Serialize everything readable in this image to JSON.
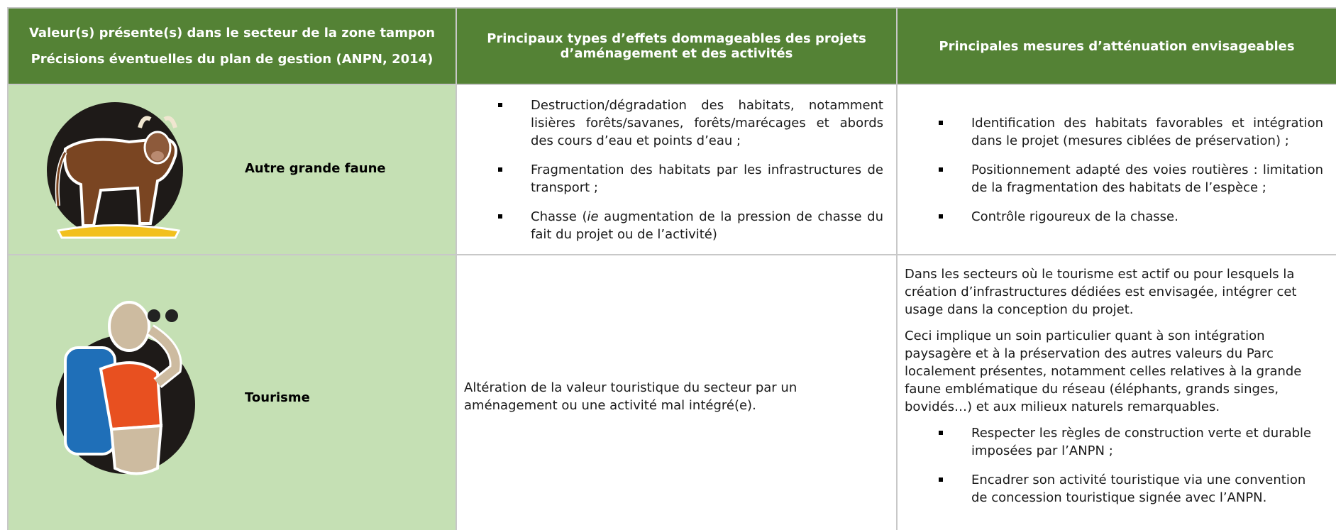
{
  "header": {
    "col1_title": "Valeur(s) présente(s) dans le secteur de la zone tampon",
    "col1_subtitle": "Précisions éventuelles du plan de gestion (ANPN, 2014)",
    "col2": "Principaux types d’effets dommageables des projets d’aménagement et des activités",
    "col3": "Principales mesures d’atténuation envisageables"
  },
  "rows": [
    {
      "value": "Autre grande faune",
      "effects": [
        "Destruction/dégradation des habitats, notamment lisières forêts/savanes, forêts/marécages et abords des cours d’eau et points d’eau ;",
        "Fragmentation des habitats par les infrastructures de transport ;",
        {
          "before": "Chasse (",
          "italic": "ie",
          "after": " augmentation de la pression de chasse du fait du projet ou de l’activité)"
        }
      ],
      "measures": [
        "Identification des habitats favorables et intégration dans le projet (mesures ciblées de préservation) ;",
        "Positionnement adapté des voies routières : limitation de la fragmentation des habitats de l’espèce ;",
        "Contrôle rigoureux de la chasse."
      ]
    },
    {
      "value": "Tourisme",
      "effect": "Altération de la valeur touristique du secteur par un aménagement ou une activité mal intégré(e).",
      "paragraphs": [
        "Dans les secteurs où le tourisme est actif ou pour lesquels la création d’infrastructures dédiées est envisagée, intégrer cet usage dans la conception du projet.",
        "Ceci implique un soin particulier quant à son intégration paysagère et à la préservation des autres valeurs du Parc localement présentes, notamment celles relatives à la grande faune emblématique du réseau (éléphants, grands singes, bovidés…) et aux milieux naturels remarquables."
      ],
      "measures": [
        "Respecter les règles de construction verte et durable imposées par l’ANPN ;",
        "Encadrer son activité touristique via une convention de concession touristique signée avec l’ANPN."
      ]
    }
  ]
}
